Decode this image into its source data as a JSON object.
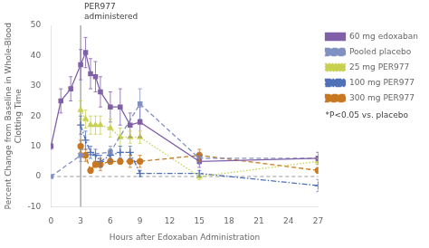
{
  "chart_data": {
    "type": "line",
    "xlabel": "Hours after Edoxaban Administration",
    "ylabel": "Percent Change from Baseline in Whole-Blood\nClotting Time",
    "xlim": [
      0,
      27
    ],
    "ylim": [
      -10,
      50
    ],
    "xticks": [
      0,
      3,
      6,
      9,
      12,
      15,
      18,
      21,
      24,
      27
    ],
    "yticks": [
      -10,
      0,
      10,
      20,
      30,
      40,
      50
    ],
    "grid": false,
    "legend": "right",
    "annotations": [
      {
        "text": "PER977\nadministered",
        "x": 3
      }
    ],
    "hline": 0,
    "note": "*P<0.05 vs. placebo",
    "series": [
      {
        "name": "60 mg edoxaban",
        "color": "#8060a8",
        "line_style": "solid",
        "marker": "square",
        "x": [
          0,
          1,
          2,
          3,
          3.5,
          4,
          4.5,
          5,
          6,
          7,
          8,
          9,
          15,
          27
        ],
        "values": [
          10,
          25,
          29,
          37,
          41,
          34,
          33,
          28,
          23,
          23,
          17,
          18,
          5,
          6
        ],
        "yerr_lo": [
          1,
          4,
          4,
          5,
          5,
          5,
          5,
          5,
          5,
          6,
          4,
          5,
          2,
          2
        ],
        "yerr_hi": [
          1,
          4,
          4,
          5,
          5,
          5,
          5,
          5,
          5,
          6,
          4,
          5,
          2,
          2
        ]
      },
      {
        "name": "Pooled placebo",
        "color": "#8090c0",
        "line_style": "dashed",
        "marker": "square",
        "x": [
          0,
          3,
          6,
          9,
          15,
          27
        ],
        "values": [
          0,
          7,
          8,
          24,
          6,
          6
        ],
        "yerr_lo": [
          0,
          2,
          2,
          5,
          2,
          2
        ],
        "yerr_hi": [
          0,
          2,
          2,
          5,
          2,
          2
        ]
      },
      {
        "name": "25 mg PER977",
        "color": "#c8d050",
        "line_style": "dotted",
        "marker": "triangle",
        "x": [
          3,
          3.5,
          4,
          4.5,
          5,
          6,
          7,
          8,
          9,
          15,
          27
        ],
        "values": [
          22,
          19,
          17,
          17,
          17,
          16,
          13,
          13,
          13,
          0,
          5
        ],
        "yerr_lo": [
          3,
          3,
          3,
          3,
          3,
          3,
          3,
          2,
          2,
          1,
          1
        ],
        "yerr_hi": [
          3,
          3,
          3,
          3,
          3,
          3,
          3,
          2,
          2,
          1,
          1
        ]
      },
      {
        "name": "100 mg PER977",
        "color": "#5070b8",
        "line_style": "dashdot",
        "marker": "plus",
        "x": [
          3,
          3.5,
          4,
          4.5,
          5,
          6,
          7,
          8,
          9,
          15,
          27
        ],
        "values": [
          17,
          12,
          8,
          7,
          5,
          7,
          8,
          8,
          1,
          1,
          -3
        ],
        "yerr_lo": [
          3,
          3,
          2,
          2,
          2,
          2,
          2,
          2,
          1,
          1,
          2
        ],
        "yerr_hi": [
          3,
          3,
          2,
          2,
          2,
          2,
          2,
          2,
          1,
          1,
          2
        ]
      },
      {
        "name": "300 mg PER977",
        "color": "#c87820",
        "line_style": "dashed",
        "marker": "circle",
        "x": [
          3,
          3.5,
          4,
          4.5,
          5,
          6,
          7,
          8,
          9,
          15,
          27
        ],
        "values": [
          10,
          7,
          2,
          4,
          4,
          5,
          5,
          5,
          5,
          7,
          2
        ],
        "yerr_lo": [
          2,
          2,
          1,
          1,
          2,
          1,
          1,
          2,
          2,
          2,
          1
        ],
        "yerr_hi": [
          2,
          2,
          1,
          1,
          2,
          1,
          1,
          2,
          2,
          2,
          1
        ]
      }
    ]
  }
}
